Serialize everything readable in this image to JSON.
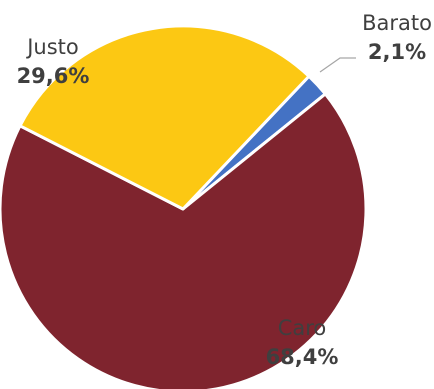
{
  "chart_data": {
    "type": "pie",
    "title": "",
    "slices": [
      {
        "label": "Barato",
        "value": 2.1,
        "value_label": "2,1%",
        "color": "#4472c4"
      },
      {
        "label": "Caro",
        "value": 68.4,
        "value_label": "68,4%",
        "color": "#7f242e"
      },
      {
        "label": "Justo",
        "value": 29.6,
        "value_label": "29,6%",
        "color": "#fcc813"
      }
    ],
    "legend": "none",
    "label_color": "#3f3f3f"
  }
}
